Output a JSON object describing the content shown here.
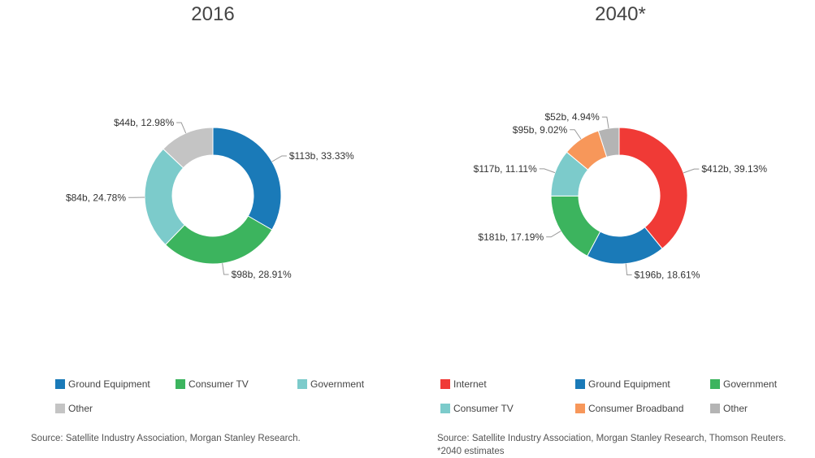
{
  "chart_data": [
    {
      "type": "donut",
      "title": "2016",
      "slices": [
        {
          "name": "Ground Equipment",
          "value": 113,
          "label": "$113b, 33.33%",
          "color": "#1a7ab8"
        },
        {
          "name": "Consumer TV",
          "value": 98,
          "label": "$98b, 28.91%",
          "color": "#3cb45e"
        },
        {
          "name": "Government",
          "value": 84,
          "label": "$84b, 24.78%",
          "color": "#7ccbcb"
        },
        {
          "name": "Other",
          "value": 44,
          "label": "$44b, 12.98%",
          "color": "#c4c4c4"
        }
      ],
      "legend": [
        {
          "name": "Ground Equipment",
          "color": "#1a7ab8"
        },
        {
          "name": "Consumer TV",
          "color": "#3cb45e"
        },
        {
          "name": "Government",
          "color": "#7ccbcb"
        },
        {
          "name": "Other",
          "color": "#c4c4c4"
        }
      ],
      "legend_position": "bottom",
      "source": "Source: Satellite Industry Association, Morgan Stanley Research."
    },
    {
      "type": "donut",
      "title": "2040*",
      "slices": [
        {
          "name": "Internet",
          "value": 412,
          "label": "$412b, 39.13%",
          "color": "#f03a36"
        },
        {
          "name": "Ground Equipment",
          "value": 196,
          "label": "$196b, 18.61%",
          "color": "#1a7ab8"
        },
        {
          "name": "Government",
          "value": 181,
          "label": "$181b, 17.19%",
          "color": "#3cb45e"
        },
        {
          "name": "Consumer TV",
          "value": 117,
          "label": "$117b, 11.11%",
          "color": "#7ccbcb"
        },
        {
          "name": "Consumer Broadband",
          "value": 95,
          "label": "$95b, 9.02%",
          "color": "#f7975a"
        },
        {
          "name": "Other",
          "value": 52,
          "label": "$52b, 4.94%",
          "color": "#b4b4b4"
        }
      ],
      "legend": [
        {
          "name": "Internet",
          "color": "#f03a36"
        },
        {
          "name": "Ground Equipment",
          "color": "#1a7ab8"
        },
        {
          "name": "Government",
          "color": "#3cb45e"
        },
        {
          "name": "Consumer TV",
          "color": "#7ccbcb"
        },
        {
          "name": "Consumer Broadband",
          "color": "#f7975a"
        },
        {
          "name": "Other",
          "color": "#b4b4b4"
        }
      ],
      "legend_position": "bottom",
      "source": "Source: Satellite Industry Association, Morgan Stanley Research, Thomson Reuters. *2040 estimates"
    }
  ]
}
